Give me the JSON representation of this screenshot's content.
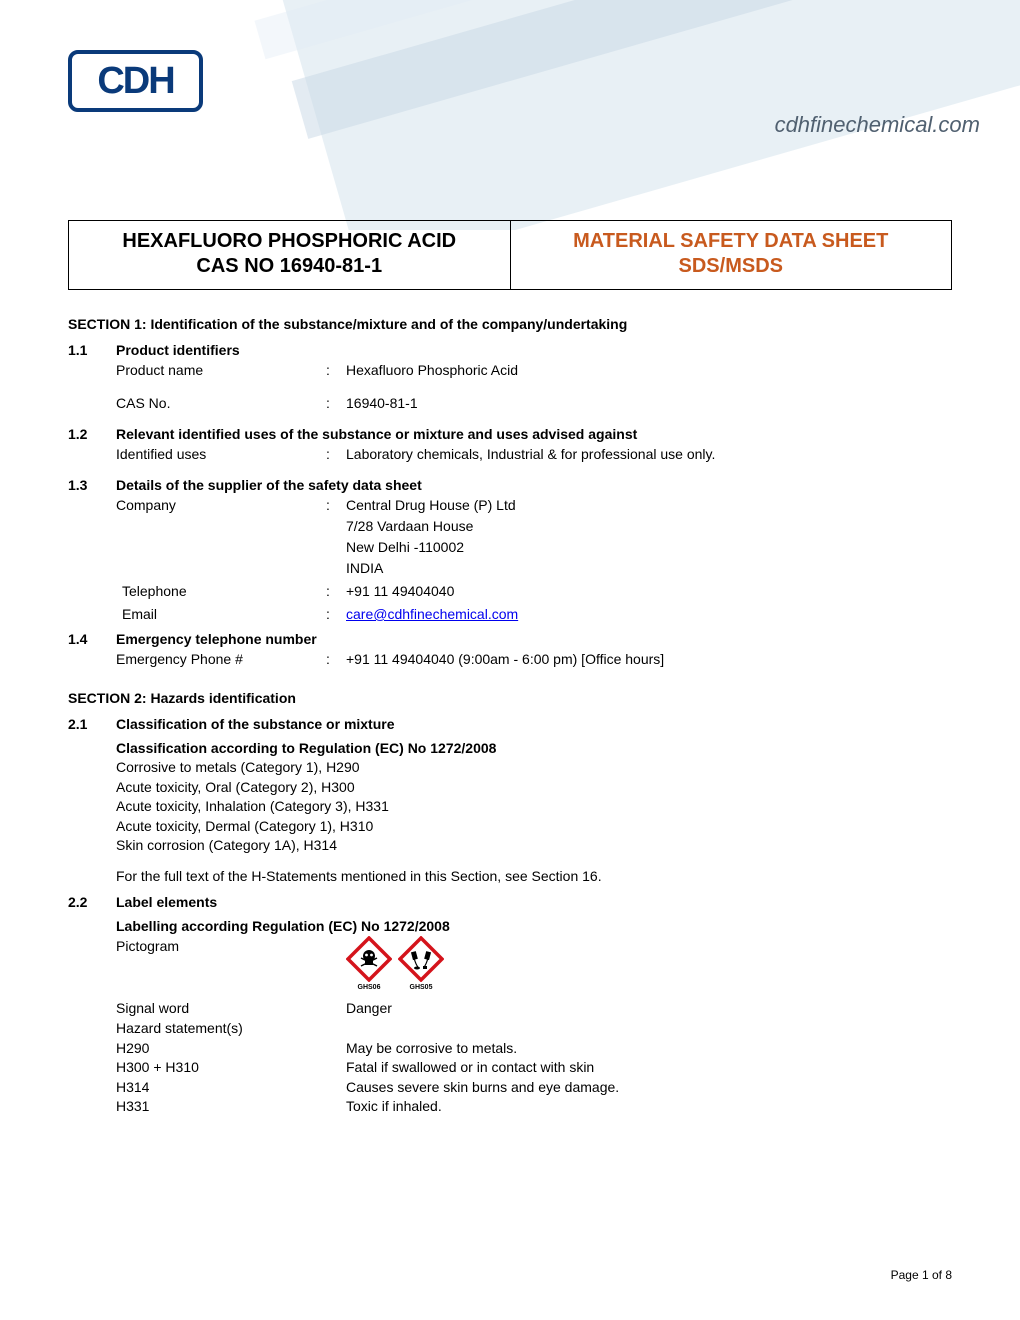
{
  "header": {
    "logo_text": "CDH",
    "website_url": "cdhfinechemical.com",
    "logo_border_color": "#0a3a7a",
    "logo_text_color": "#0a3a7a"
  },
  "title_box": {
    "left_line1": "HEXAFLUORO PHOSPHORIC ACID",
    "left_line2": "CAS NO 16940-81-1",
    "right_line1": "MATERIAL SAFETY DATA SHEET",
    "right_line2": "SDS/MSDS",
    "right_color": "#c85a1e"
  },
  "section1": {
    "heading": "SECTION 1: Identification of the substance/mixture and of the company/undertaking",
    "sub1": {
      "num": "1.1",
      "title": "Product identifiers",
      "product_name_label": "Product name",
      "product_name_value": "Hexafluoro Phosphoric Acid",
      "cas_label": "CAS No.",
      "cas_value": "16940-81-1"
    },
    "sub2": {
      "num": "1.2",
      "title": "Relevant identified uses of the substance or mixture and uses advised against",
      "uses_label": "Identified uses",
      "uses_value": "Laboratory chemicals, Industrial & for professional use only."
    },
    "sub3": {
      "num": "1.3",
      "title": "Details of the supplier of the safety data sheet",
      "company_label": "Company",
      "company_value": "Central Drug House (P) Ltd\n7/28 Vardaan House\nNew Delhi -110002\nINDIA",
      "telephone_label": "Telephone",
      "telephone_value": "+91 11 49404040",
      "email_label": "Email",
      "email_value": "care@cdhfinechemical.com"
    },
    "sub4": {
      "num": "1.4",
      "title": "Emergency telephone number",
      "emergency_label": "Emergency Phone #",
      "emergency_value": "+91 11 49404040 (9:00am - 6:00 pm) [Office hours]"
    }
  },
  "section2": {
    "heading": "SECTION 2: Hazards identification",
    "sub1": {
      "num": "2.1",
      "title": "Classification of the substance or mixture",
      "classification_title": "Classification according to Regulation (EC) No 1272/2008",
      "classifications": [
        "Corrosive to metals (Category 1), H290",
        "Acute toxicity, Oral (Category 2), H300",
        "Acute toxicity, Inhalation (Category 3), H331",
        "Acute toxicity, Dermal (Category 1), H310",
        "Skin corrosion (Category 1A), H314"
      ],
      "note": "For the full text of the H-Statements mentioned in this Section, see Section 16."
    },
    "sub2": {
      "num": "2.2",
      "title": "Label elements",
      "labelling_title": "Labelling according Regulation (EC) No 1272/2008",
      "pictogram_label": "Pictogram",
      "pictograms": [
        {
          "code": "GHS06",
          "border_color": "#d4131b",
          "has_skull": true
        },
        {
          "code": "GHS05",
          "border_color": "#d4131b",
          "has_skull": false
        }
      ],
      "signal_word_label": "Signal word",
      "signal_word_value": "Danger",
      "hazard_statements_label": "Hazard statement(s)",
      "hazard_statements": [
        {
          "code": "H290",
          "text": "May be corrosive to metals."
        },
        {
          "code": "H300 + H310",
          "text": "Fatal if swallowed or in contact with skin"
        },
        {
          "code": "H314",
          "text": "Causes severe skin burns and eye damage."
        },
        {
          "code": "H331",
          "text": "Toxic if inhaled."
        }
      ]
    }
  },
  "footer": {
    "page_text": "Page 1  of  8"
  },
  "styles": {
    "body_font_size": 14,
    "heading_font_size": 14,
    "title_font_size": 20,
    "background_color": "#ffffff",
    "text_color": "#000000",
    "link_color": "#0000ee"
  }
}
